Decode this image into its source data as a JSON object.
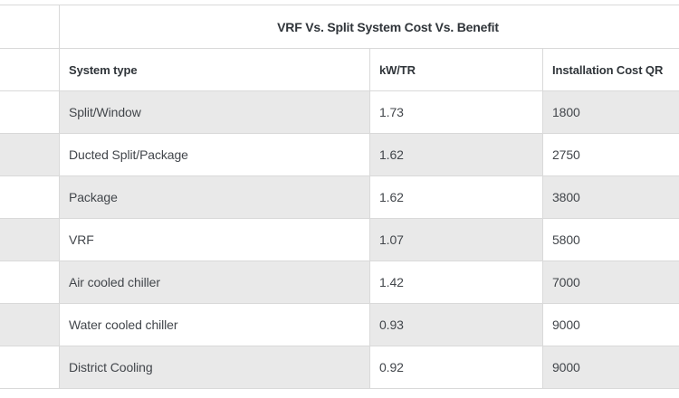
{
  "table": {
    "title": "VRF Vs. Split System Cost Vs. Benefit",
    "columns": [
      "System type",
      "kW/TR",
      "Installation Cost QR"
    ],
    "rows": [
      {
        "system": "Split/Window",
        "kw_tr": "1.73",
        "cost": "1800"
      },
      {
        "system": "Ducted Split/Package",
        "kw_tr": "1.62",
        "cost": "2750"
      },
      {
        "system": "Package",
        "kw_tr": "1.62",
        "cost": "3800"
      },
      {
        "system": "VRF",
        "kw_tr": "1.07",
        "cost": "5800"
      },
      {
        "system": "Air cooled chiller",
        "kw_tr": "1.42",
        "cost": "7000"
      },
      {
        "system": "Water cooled chiller",
        "kw_tr": "0.93",
        "cost": "9000"
      },
      {
        "system": "District Cooling",
        "kw_tr": "0.92",
        "cost": "9000"
      }
    ],
    "colors": {
      "stripe_gray": "#e9e9e9",
      "border": "#d9d9d9",
      "body_text": "#42464b",
      "heading_text": "#30353a",
      "background": "#ffffff"
    }
  }
}
